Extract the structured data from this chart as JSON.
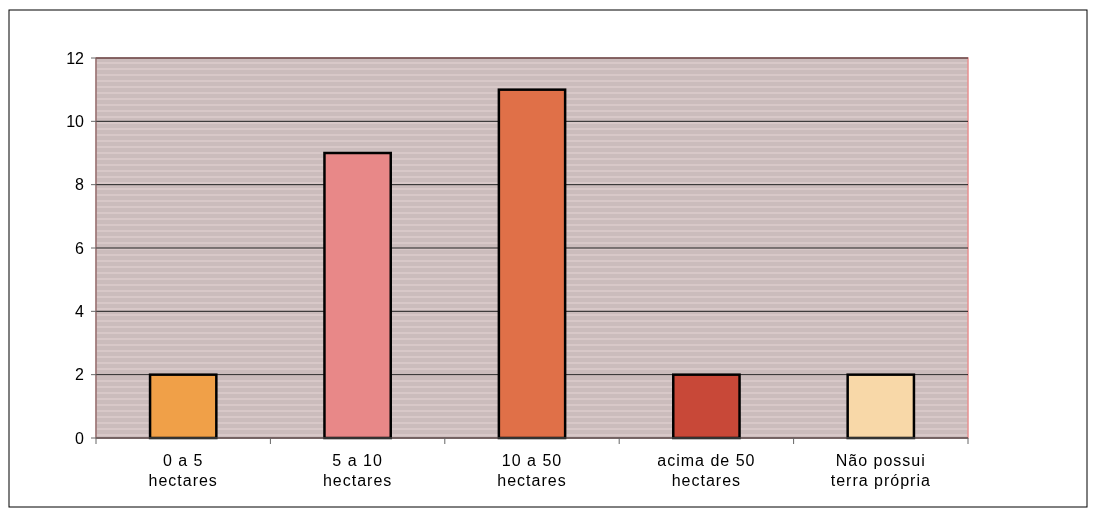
{
  "chart_data": {
    "type": "bar",
    "categories": [
      "0 a 5 hectares",
      "5 a 10 hectares",
      "10 a 50 hectares",
      "acima de 50 hectares",
      "Não possui terra própria"
    ],
    "values": [
      2,
      9,
      11,
      2,
      2
    ],
    "colors": [
      "#f0a048",
      "#e88888",
      "#e07048",
      "#c84838",
      "#f8d8a8"
    ],
    "ylim": [
      0,
      12
    ],
    "yticks": [
      0,
      2,
      4,
      6,
      8,
      10,
      12
    ],
    "grid": "y"
  }
}
